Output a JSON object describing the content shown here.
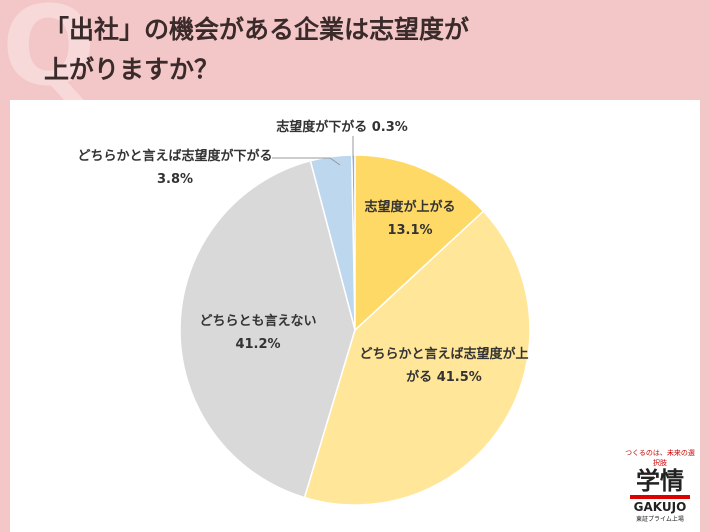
{
  "chart_data": {
    "type": "pie",
    "title": [
      "「出社」の機会がある企業は志望度が",
      "上がりますか？"
    ],
    "categories": [
      "志望度が上がる",
      "どちらかと言えば志望度が上がる",
      "どちらとも言えない",
      "どちらかと言えば志望度が下がる",
      "志望度が下がる"
    ],
    "values": [
      13.1,
      41.5,
      41.2,
      3.8,
      0.3
    ],
    "value_labels": [
      "13.1%",
      "41.5%",
      "41.2%",
      "3.8%",
      "0.3%"
    ],
    "colors": [
      "#ffd966",
      "#ffe699",
      "#d9d9d9",
      "#bdd7ee",
      "#8faadc"
    ]
  },
  "branding": {
    "tagline": "つくるのは、未来の選択肢",
    "logo": "学情",
    "logo_en": "GAKUJO",
    "listing": "東証プライム上場"
  }
}
